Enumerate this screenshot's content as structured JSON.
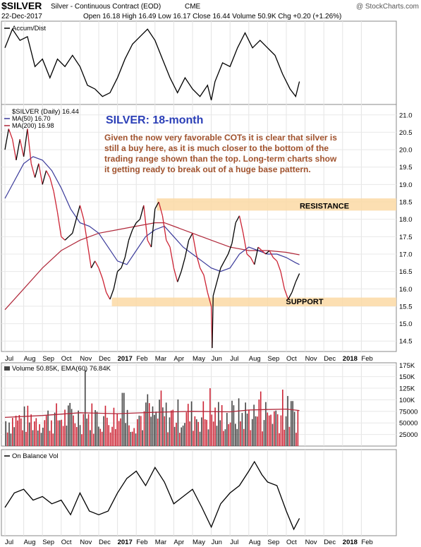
{
  "header": {
    "symbol": "$SILVER",
    "name": "Silver - Continuous Contract (EOD)",
    "exchange": "CME",
    "credit": "@ StockCharts.com",
    "date": "22-Dec-2017",
    "ohlc": "Open 16.18  High 16.49  Low 16.17  Close 16.44  Volume 50.9K  Chg +0.20 (+1.26%)"
  },
  "panels": {
    "accum": {
      "label": "Accum/Dist"
    },
    "price": {
      "label": "$SILVER (Daily) 16.44",
      "ma50": "MA(50) 16.70",
      "ma200": "MA(200) 16.98",
      "title": "SILVER: 18-month",
      "comment": [
        "Given the now very favorable COTs it is clear that silver is",
        "still a buy here, as it is much closer to the bottom of the",
        "trading range shown than the top. Long-term charts show",
        "it getting ready to break out of a huge base pattern."
      ],
      "resistance_label": "RESISTANCE",
      "support_label": "SUPPORT"
    },
    "volume": {
      "label": "Volume 50.85K, EMA(60) 76.84K"
    },
    "obv": {
      "label": "On Balance Vol"
    }
  },
  "colors": {
    "price_line": "#000000",
    "down_line": "#cc2233",
    "ma50": "#3a3a9a",
    "ma200": "#b0283a",
    "band": "#fbd9a5",
    "title": "#2b3fb7",
    "comment": "#a0522d",
    "vol_up": "#444444",
    "vol_down": "#cc2233",
    "vol_ema": "#b0283a"
  },
  "chart_data": {
    "type": "line",
    "months": [
      "Jul",
      "Aug",
      "Sep",
      "Oct",
      "Nov",
      "Dec",
      "2017",
      "Feb",
      "Mar",
      "Apr",
      "May",
      "Jun",
      "Jul",
      "Aug",
      "Sep",
      "Oct",
      "Nov",
      "Dec",
      "2018",
      "Feb"
    ],
    "price": {
      "yticks": [
        21.0,
        20.5,
        20.0,
        19.5,
        19.0,
        18.5,
        18.0,
        17.5,
        17.0,
        16.5,
        16.0,
        15.5,
        15.0,
        14.5
      ],
      "ylim": [
        14.2,
        21.3
      ],
      "resistance_zone": [
        18.25,
        18.6
      ],
      "support_zone": [
        15.5,
        15.75
      ],
      "close": [
        {
          "m": 0.0,
          "v": 20.0
        },
        {
          "m": 0.2,
          "v": 20.6
        },
        {
          "m": 0.4,
          "v": 20.3
        },
        {
          "m": 0.6,
          "v": 19.7
        },
        {
          "m": 0.8,
          "v": 20.3
        },
        {
          "m": 1.0,
          "v": 19.8
        },
        {
          "m": 1.2,
          "v": 20.6
        },
        {
          "m": 1.4,
          "v": 19.6
        },
        {
          "m": 1.6,
          "v": 19.2
        },
        {
          "m": 1.8,
          "v": 19.6
        },
        {
          "m": 2.0,
          "v": 19.0
        },
        {
          "m": 2.2,
          "v": 19.4
        },
        {
          "m": 2.4,
          "v": 19.2
        },
        {
          "m": 2.6,
          "v": 18.8
        },
        {
          "m": 2.8,
          "v": 18.2
        },
        {
          "m": 3.0,
          "v": 17.5
        },
        {
          "m": 3.2,
          "v": 17.4
        },
        {
          "m": 3.4,
          "v": 17.5
        },
        {
          "m": 3.6,
          "v": 17.6
        },
        {
          "m": 3.8,
          "v": 18.0
        },
        {
          "m": 4.0,
          "v": 18.4
        },
        {
          "m": 4.2,
          "v": 18.0
        },
        {
          "m": 4.4,
          "v": 17.3
        },
        {
          "m": 4.6,
          "v": 16.6
        },
        {
          "m": 4.8,
          "v": 16.8
        },
        {
          "m": 5.0,
          "v": 16.6
        },
        {
          "m": 5.2,
          "v": 16.3
        },
        {
          "m": 5.4,
          "v": 15.9
        },
        {
          "m": 5.6,
          "v": 15.7
        },
        {
          "m": 5.8,
          "v": 16.0
        },
        {
          "m": 6.0,
          "v": 16.5
        },
        {
          "m": 6.2,
          "v": 16.6
        },
        {
          "m": 6.4,
          "v": 16.9
        },
        {
          "m": 6.6,
          "v": 17.4
        },
        {
          "m": 6.8,
          "v": 17.7
        },
        {
          "m": 7.0,
          "v": 17.9
        },
        {
          "m": 7.2,
          "v": 18.0
        },
        {
          "m": 7.4,
          "v": 18.4
        },
        {
          "m": 7.6,
          "v": 17.4
        },
        {
          "m": 7.8,
          "v": 17.2
        },
        {
          "m": 8.0,
          "v": 18.3
        },
        {
          "m": 8.2,
          "v": 18.5
        },
        {
          "m": 8.4,
          "v": 18.1
        },
        {
          "m": 8.6,
          "v": 17.4
        },
        {
          "m": 8.8,
          "v": 17.2
        },
        {
          "m": 9.0,
          "v": 16.6
        },
        {
          "m": 9.2,
          "v": 16.2
        },
        {
          "m": 9.4,
          "v": 16.5
        },
        {
          "m": 9.6,
          "v": 16.9
        },
        {
          "m": 9.8,
          "v": 17.4
        },
        {
          "m": 10.0,
          "v": 17.6
        },
        {
          "m": 10.2,
          "v": 17.0
        },
        {
          "m": 10.4,
          "v": 16.6
        },
        {
          "m": 10.6,
          "v": 16.4
        },
        {
          "m": 10.8,
          "v": 15.9
        },
        {
          "m": 11.0,
          "v": 15.5
        },
        {
          "m": 11.05,
          "v": 14.3
        },
        {
          "m": 11.1,
          "v": 15.8
        },
        {
          "m": 11.3,
          "v": 16.2
        },
        {
          "m": 11.5,
          "v": 16.6
        },
        {
          "m": 11.7,
          "v": 16.8
        },
        {
          "m": 11.9,
          "v": 17.0
        },
        {
          "m": 12.1,
          "v": 17.3
        },
        {
          "m": 12.3,
          "v": 17.9
        },
        {
          "m": 12.5,
          "v": 18.1
        },
        {
          "m": 12.7,
          "v": 17.6
        },
        {
          "m": 12.9,
          "v": 17.0
        },
        {
          "m": 13.1,
          "v": 16.9
        },
        {
          "m": 13.3,
          "v": 16.7
        },
        {
          "m": 13.5,
          "v": 17.2
        },
        {
          "m": 13.7,
          "v": 17.1
        },
        {
          "m": 13.9,
          "v": 17.0
        },
        {
          "m": 14.1,
          "v": 17.1
        },
        {
          "m": 14.3,
          "v": 16.9
        },
        {
          "m": 14.5,
          "v": 16.8
        },
        {
          "m": 14.7,
          "v": 16.5
        },
        {
          "m": 14.9,
          "v": 16.0
        },
        {
          "m": 15.1,
          "v": 15.7
        },
        {
          "m": 15.3,
          "v": 15.9
        },
        {
          "m": 15.5,
          "v": 16.2
        },
        {
          "m": 15.7,
          "v": 16.44
        }
      ],
      "ma50": [
        {
          "m": 0.0,
          "v": 18.6
        },
        {
          "m": 0.5,
          "v": 19.1
        },
        {
          "m": 1.0,
          "v": 19.6
        },
        {
          "m": 1.5,
          "v": 19.8
        },
        {
          "m": 2.0,
          "v": 19.7
        },
        {
          "m": 2.5,
          "v": 19.4
        },
        {
          "m": 3.0,
          "v": 18.9
        },
        {
          "m": 3.5,
          "v": 18.3
        },
        {
          "m": 4.0,
          "v": 17.9
        },
        {
          "m": 4.5,
          "v": 17.8
        },
        {
          "m": 5.0,
          "v": 17.6
        },
        {
          "m": 5.5,
          "v": 17.2
        },
        {
          "m": 6.0,
          "v": 16.8
        },
        {
          "m": 6.5,
          "v": 16.7
        },
        {
          "m": 7.0,
          "v": 17.1
        },
        {
          "m": 7.5,
          "v": 17.5
        },
        {
          "m": 8.0,
          "v": 17.7
        },
        {
          "m": 8.5,
          "v": 17.8
        },
        {
          "m": 9.0,
          "v": 17.5
        },
        {
          "m": 9.5,
          "v": 17.2
        },
        {
          "m": 10.0,
          "v": 17.0
        },
        {
          "m": 10.5,
          "v": 16.8
        },
        {
          "m": 11.0,
          "v": 16.6
        },
        {
          "m": 11.5,
          "v": 16.5
        },
        {
          "m": 12.0,
          "v": 16.6
        },
        {
          "m": 12.5,
          "v": 17.0
        },
        {
          "m": 13.0,
          "v": 17.2
        },
        {
          "m": 13.5,
          "v": 17.1
        },
        {
          "m": 14.0,
          "v": 17.0
        },
        {
          "m": 14.5,
          "v": 17.0
        },
        {
          "m": 15.0,
          "v": 16.9
        },
        {
          "m": 15.5,
          "v": 16.75
        },
        {
          "m": 15.7,
          "v": 16.7
        }
      ],
      "ma200": [
        {
          "m": 0.0,
          "v": 15.4
        },
        {
          "m": 1.0,
          "v": 16.0
        },
        {
          "m": 2.0,
          "v": 16.6
        },
        {
          "m": 3.0,
          "v": 17.1
        },
        {
          "m": 4.0,
          "v": 17.4
        },
        {
          "m": 5.0,
          "v": 17.6
        },
        {
          "m": 6.0,
          "v": 17.7
        },
        {
          "m": 7.0,
          "v": 17.8
        },
        {
          "m": 8.0,
          "v": 17.9
        },
        {
          "m": 8.5,
          "v": 17.9
        },
        {
          "m": 9.0,
          "v": 17.8
        },
        {
          "m": 10.0,
          "v": 17.6
        },
        {
          "m": 11.0,
          "v": 17.4
        },
        {
          "m": 12.0,
          "v": 17.2
        },
        {
          "m": 13.0,
          "v": 17.1
        },
        {
          "m": 14.0,
          "v": 17.1
        },
        {
          "m": 15.0,
          "v": 17.05
        },
        {
          "m": 15.7,
          "v": 16.98
        }
      ]
    },
    "volume": {
      "yticks": [
        "175K",
        "150K",
        "125K",
        "100K",
        "75000",
        "50000",
        "25000"
      ],
      "tick_values": [
        175000,
        150000,
        125000,
        100000,
        75000,
        50000,
        25000
      ],
      "ylim": [
        0,
        180000
      ],
      "ema": [
        {
          "m": 0.0,
          "v": 62000
        },
        {
          "m": 2.0,
          "v": 66000
        },
        {
          "m": 4.0,
          "v": 72000
        },
        {
          "m": 6.0,
          "v": 70000
        },
        {
          "m": 8.0,
          "v": 73000
        },
        {
          "m": 10.0,
          "v": 75000
        },
        {
          "m": 12.0,
          "v": 74000
        },
        {
          "m": 13.0,
          "v": 78000
        },
        {
          "m": 14.0,
          "v": 79000
        },
        {
          "m": 15.0,
          "v": 80000
        },
        {
          "m": 15.7,
          "v": 76840
        }
      ],
      "peaks": [
        {
          "m": 4.3,
          "v": 165000
        },
        {
          "m": 10.9,
          "v": 125000
        },
        {
          "m": 6.3,
          "v": 115000
        },
        {
          "m": 7.6,
          "v": 112000
        },
        {
          "m": 8.3,
          "v": 120000
        },
        {
          "m": 13.6,
          "v": 118000
        },
        {
          "m": 14.8,
          "v": 122000
        }
      ]
    },
    "accum_dist": [
      {
        "m": 0.0,
        "v": 0.7
      },
      {
        "m": 0.4,
        "v": 0.95
      },
      {
        "m": 0.8,
        "v": 0.8
      },
      {
        "m": 1.2,
        "v": 0.85
      },
      {
        "m": 1.6,
        "v": 0.45
      },
      {
        "m": 2.0,
        "v": 0.55
      },
      {
        "m": 2.4,
        "v": 0.3
      },
      {
        "m": 2.8,
        "v": 0.55
      },
      {
        "m": 3.2,
        "v": 0.45
      },
      {
        "m": 3.6,
        "v": 0.6
      },
      {
        "m": 4.0,
        "v": 0.45
      },
      {
        "m": 4.4,
        "v": 0.2
      },
      {
        "m": 4.8,
        "v": 0.15
      },
      {
        "m": 5.2,
        "v": 0.05
      },
      {
        "m": 5.6,
        "v": 0.1
      },
      {
        "m": 6.0,
        "v": 0.3
      },
      {
        "m": 6.4,
        "v": 0.55
      },
      {
        "m": 6.8,
        "v": 0.75
      },
      {
        "m": 7.2,
        "v": 0.85
      },
      {
        "m": 7.6,
        "v": 0.95
      },
      {
        "m": 8.0,
        "v": 0.8
      },
      {
        "m": 8.4,
        "v": 0.55
      },
      {
        "m": 8.8,
        "v": 0.3
      },
      {
        "m": 9.2,
        "v": 0.1
      },
      {
        "m": 9.6,
        "v": 0.3
      },
      {
        "m": 10.0,
        "v": 0.15
      },
      {
        "m": 10.4,
        "v": 0.05
      },
      {
        "m": 10.8,
        "v": 0.2
      },
      {
        "m": 11.0,
        "v": 0.0
      },
      {
        "m": 11.2,
        "v": 0.25
      },
      {
        "m": 11.6,
        "v": 0.5
      },
      {
        "m": 12.0,
        "v": 0.45
      },
      {
        "m": 12.4,
        "v": 0.7
      },
      {
        "m": 12.8,
        "v": 0.9
      },
      {
        "m": 13.2,
        "v": 0.7
      },
      {
        "m": 13.6,
        "v": 0.8
      },
      {
        "m": 14.0,
        "v": 0.7
      },
      {
        "m": 14.4,
        "v": 0.6
      },
      {
        "m": 14.8,
        "v": 0.35
      },
      {
        "m": 15.2,
        "v": 0.15
      },
      {
        "m": 15.5,
        "v": 0.05
      },
      {
        "m": 15.7,
        "v": 0.25
      }
    ],
    "obv": [
      {
        "m": 0.0,
        "v": 0.35
      },
      {
        "m": 0.5,
        "v": 0.55
      },
      {
        "m": 1.0,
        "v": 0.6
      },
      {
        "m": 1.5,
        "v": 0.45
      },
      {
        "m": 2.0,
        "v": 0.5
      },
      {
        "m": 2.5,
        "v": 0.4
      },
      {
        "m": 3.0,
        "v": 0.45
      },
      {
        "m": 3.5,
        "v": 0.25
      },
      {
        "m": 4.0,
        "v": 0.55
      },
      {
        "m": 4.5,
        "v": 0.3
      },
      {
        "m": 5.0,
        "v": 0.25
      },
      {
        "m": 5.5,
        "v": 0.3
      },
      {
        "m": 6.0,
        "v": 0.55
      },
      {
        "m": 6.5,
        "v": 0.75
      },
      {
        "m": 7.0,
        "v": 0.85
      },
      {
        "m": 7.5,
        "v": 0.65
      },
      {
        "m": 8.0,
        "v": 0.9
      },
      {
        "m": 8.5,
        "v": 0.7
      },
      {
        "m": 9.0,
        "v": 0.4
      },
      {
        "m": 9.5,
        "v": 0.5
      },
      {
        "m": 10.0,
        "v": 0.6
      },
      {
        "m": 10.5,
        "v": 0.35
      },
      {
        "m": 11.0,
        "v": 0.08
      },
      {
        "m": 11.5,
        "v": 0.4
      },
      {
        "m": 12.0,
        "v": 0.55
      },
      {
        "m": 12.5,
        "v": 0.65
      },
      {
        "m": 13.0,
        "v": 0.85
      },
      {
        "m": 13.3,
        "v": 0.98
      },
      {
        "m": 13.7,
        "v": 0.8
      },
      {
        "m": 14.0,
        "v": 0.7
      },
      {
        "m": 14.5,
        "v": 0.65
      },
      {
        "m": 15.0,
        "v": 0.3
      },
      {
        "m": 15.4,
        "v": 0.05
      },
      {
        "m": 15.7,
        "v": 0.2
      }
    ]
  }
}
